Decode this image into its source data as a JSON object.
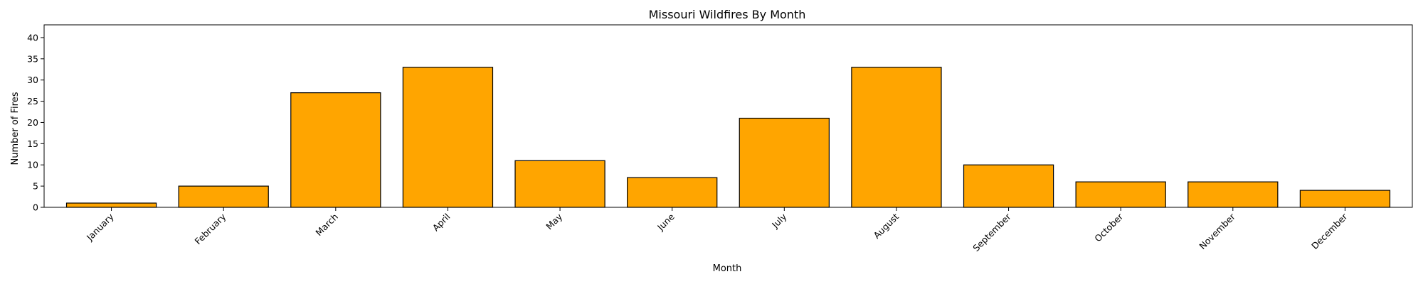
{
  "chart_data": {
    "type": "bar",
    "title": "Missouri Wildfires By Month",
    "xlabel": "Month",
    "ylabel": "Number of Fires",
    "categories": [
      "January",
      "February",
      "March",
      "April",
      "May",
      "June",
      "July",
      "August",
      "September",
      "October",
      "November",
      "December"
    ],
    "values": [
      1,
      5,
      27,
      33,
      11,
      7,
      21,
      33,
      10,
      6,
      6,
      4
    ],
    "ylim": [
      0,
      43
    ],
    "yticks": [
      0,
      5,
      10,
      15,
      20,
      25,
      30,
      35,
      40
    ],
    "grid": false,
    "bar_color": "#ffa500",
    "edge_color": "#000000"
  }
}
